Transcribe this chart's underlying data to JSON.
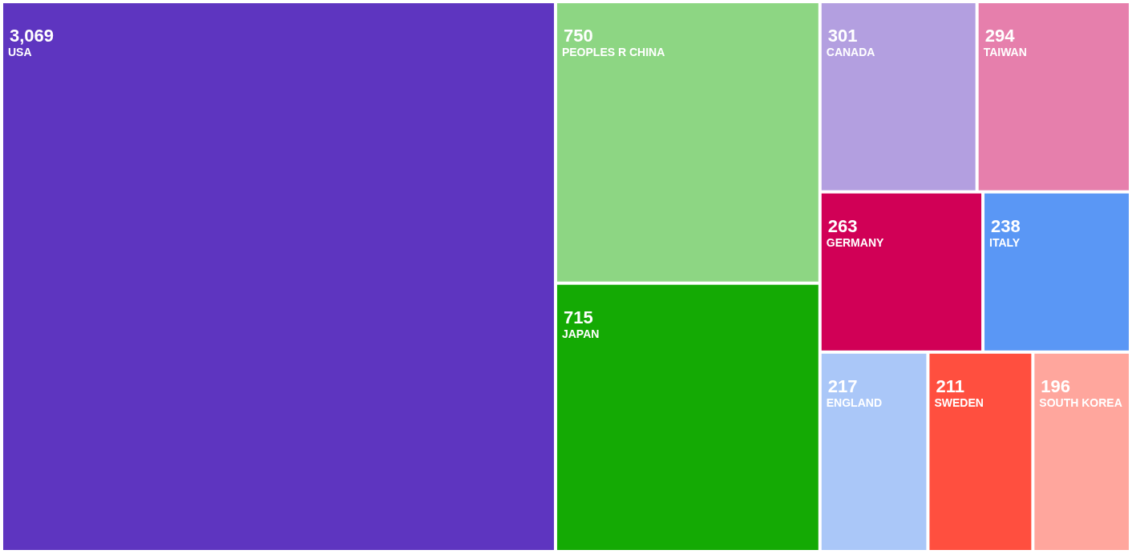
{
  "chart_data": {
    "type": "other",
    "categories": [
      "USA",
      "PEOPLES R CHINA",
      "JAPAN",
      "CANADA",
      "TAIWAN",
      "GERMANY",
      "ITALY",
      "ENGLAND",
      "SWEDEN",
      "SOUTH KOREA"
    ],
    "values": [
      3069,
      750,
      715,
      301,
      294,
      263,
      238,
      217,
      211,
      196
    ],
    "colors": [
      "#5e35c0",
      "#8dd683",
      "#14aa04",
      "#b39fe0",
      "#e67fac",
      "#d10056",
      "#5a97f5",
      "#aac7f8",
      "#ff4f3f",
      "#ffa69d"
    ],
    "value_labels": [
      "3,069",
      "750",
      "715",
      "301",
      "294",
      "263",
      "238",
      "217",
      "211",
      "196"
    ]
  }
}
